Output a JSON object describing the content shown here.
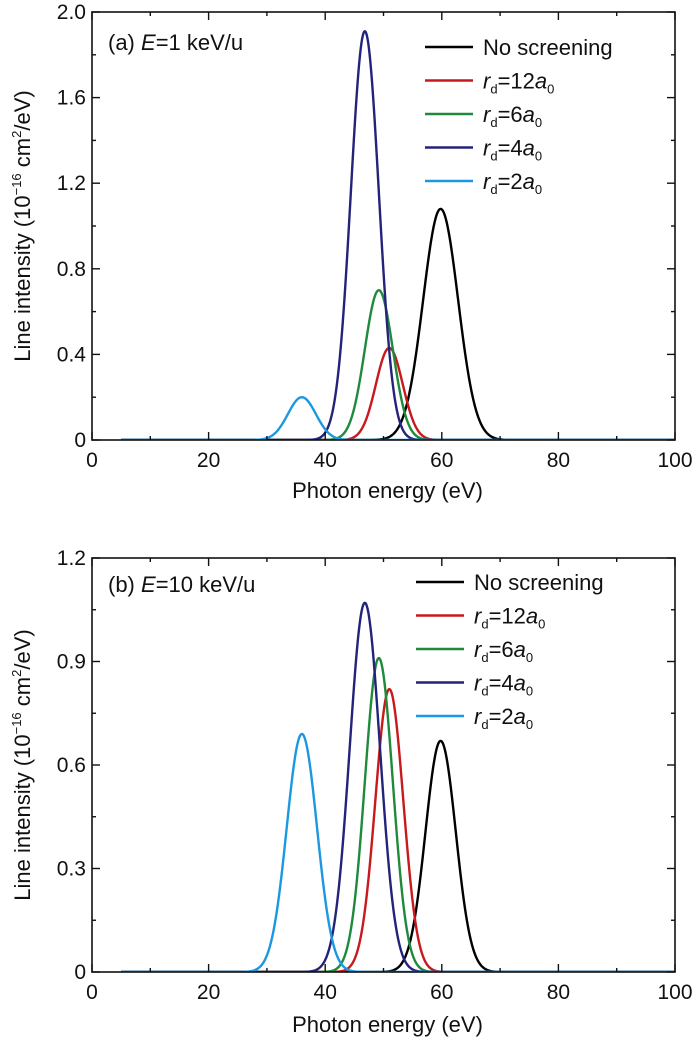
{
  "chart_data": [
    {
      "type": "line",
      "panel_label": "(a)",
      "energy_var": "E",
      "energy_rest": "=1 keV/u",
      "xlabel": "Photon energy (eV)",
      "ylabel_main": "Line intensity (10",
      "ylabel_exp": "−16",
      "ylabel_mid": " cm",
      "ylabel_exp2": "2",
      "ylabel_end": "/eV)",
      "xlim": [
        0,
        100
      ],
      "ylim": [
        0,
        2.0
      ],
      "xticks": [
        0,
        20,
        40,
        60,
        80,
        100
      ],
      "xtick_labels": [
        "0",
        "20",
        "40",
        "60",
        "80",
        "100"
      ],
      "yticks": [
        0,
        0.4,
        0.8,
        1.2,
        1.6,
        2.0
      ],
      "ytick_labels": [
        "0",
        "0.4",
        "0.8",
        "1.2",
        "1.6",
        "2.0"
      ],
      "x_range": [
        5,
        100
      ],
      "legend_position": "top-right",
      "series": [
        {
          "name": "No screening",
          "label_type": "plain",
          "color": "#000000",
          "peak": {
            "x": 59.8,
            "y": 1.08
          },
          "width": 3.0
        },
        {
          "name": "rd=12a0",
          "label_type": "rd",
          "value": "12",
          "color": "#c8191d",
          "peak": {
            "x": 51.0,
            "y": 0.43
          },
          "width": 2.3
        },
        {
          "name": "rd=6a0",
          "label_type": "rd",
          "value": "6",
          "color": "#1f8a3b",
          "peak": {
            "x": 49.2,
            "y": 0.7
          },
          "width": 2.4
        },
        {
          "name": "rd=4a0",
          "label_type": "rd",
          "value": "4",
          "color": "#23237a",
          "peak": {
            "x": 46.8,
            "y": 1.91
          },
          "width": 2.4
        },
        {
          "name": "rd=2a0",
          "label_type": "rd",
          "value": "2",
          "color": "#1b98e0",
          "peak": {
            "x": 36.0,
            "y": 0.2
          },
          "width": 2.4
        }
      ]
    },
    {
      "type": "line",
      "panel_label": "(b)",
      "energy_var": "E",
      "energy_rest": "=10 keV/u",
      "xlabel": "Photon energy (eV)",
      "ylabel_main": "Line intensity (10",
      "ylabel_exp": "−16",
      "ylabel_mid": " cm",
      "ylabel_exp2": "2",
      "ylabel_end": "/eV)",
      "xlim": [
        0,
        100
      ],
      "ylim": [
        0,
        1.2
      ],
      "xticks": [
        0,
        20,
        40,
        60,
        80,
        100
      ],
      "xtick_labels": [
        "0",
        "20",
        "40",
        "60",
        "80",
        "100"
      ],
      "yticks": [
        0,
        0.3,
        0.6,
        0.9,
        1.2
      ],
      "ytick_labels": [
        "0",
        "0.3",
        "0.6",
        "0.9",
        "1.2"
      ],
      "x_range": [
        5,
        100
      ],
      "legend_position": "top-right",
      "series": [
        {
          "name": "No screening",
          "label_type": "plain",
          "color": "#000000",
          "peak": {
            "x": 59.8,
            "y": 0.67
          },
          "width": 2.6
        },
        {
          "name": "rd=12a0",
          "label_type": "rd",
          "value": "12",
          "color": "#c8191d",
          "peak": {
            "x": 51.0,
            "y": 0.82
          },
          "width": 2.4
        },
        {
          "name": "rd=6a0",
          "label_type": "rd",
          "value": "6",
          "color": "#1f8a3b",
          "peak": {
            "x": 49.2,
            "y": 0.91
          },
          "width": 2.4
        },
        {
          "name": "rd=4a0",
          "label_type": "rd",
          "value": "4",
          "color": "#23237a",
          "peak": {
            "x": 46.8,
            "y": 1.07
          },
          "width": 2.6
        },
        {
          "name": "rd=2a0",
          "label_type": "rd",
          "value": "2",
          "color": "#1b98e0",
          "peak": {
            "x": 36.0,
            "y": 0.69
          },
          "width": 2.6
        }
      ]
    }
  ]
}
